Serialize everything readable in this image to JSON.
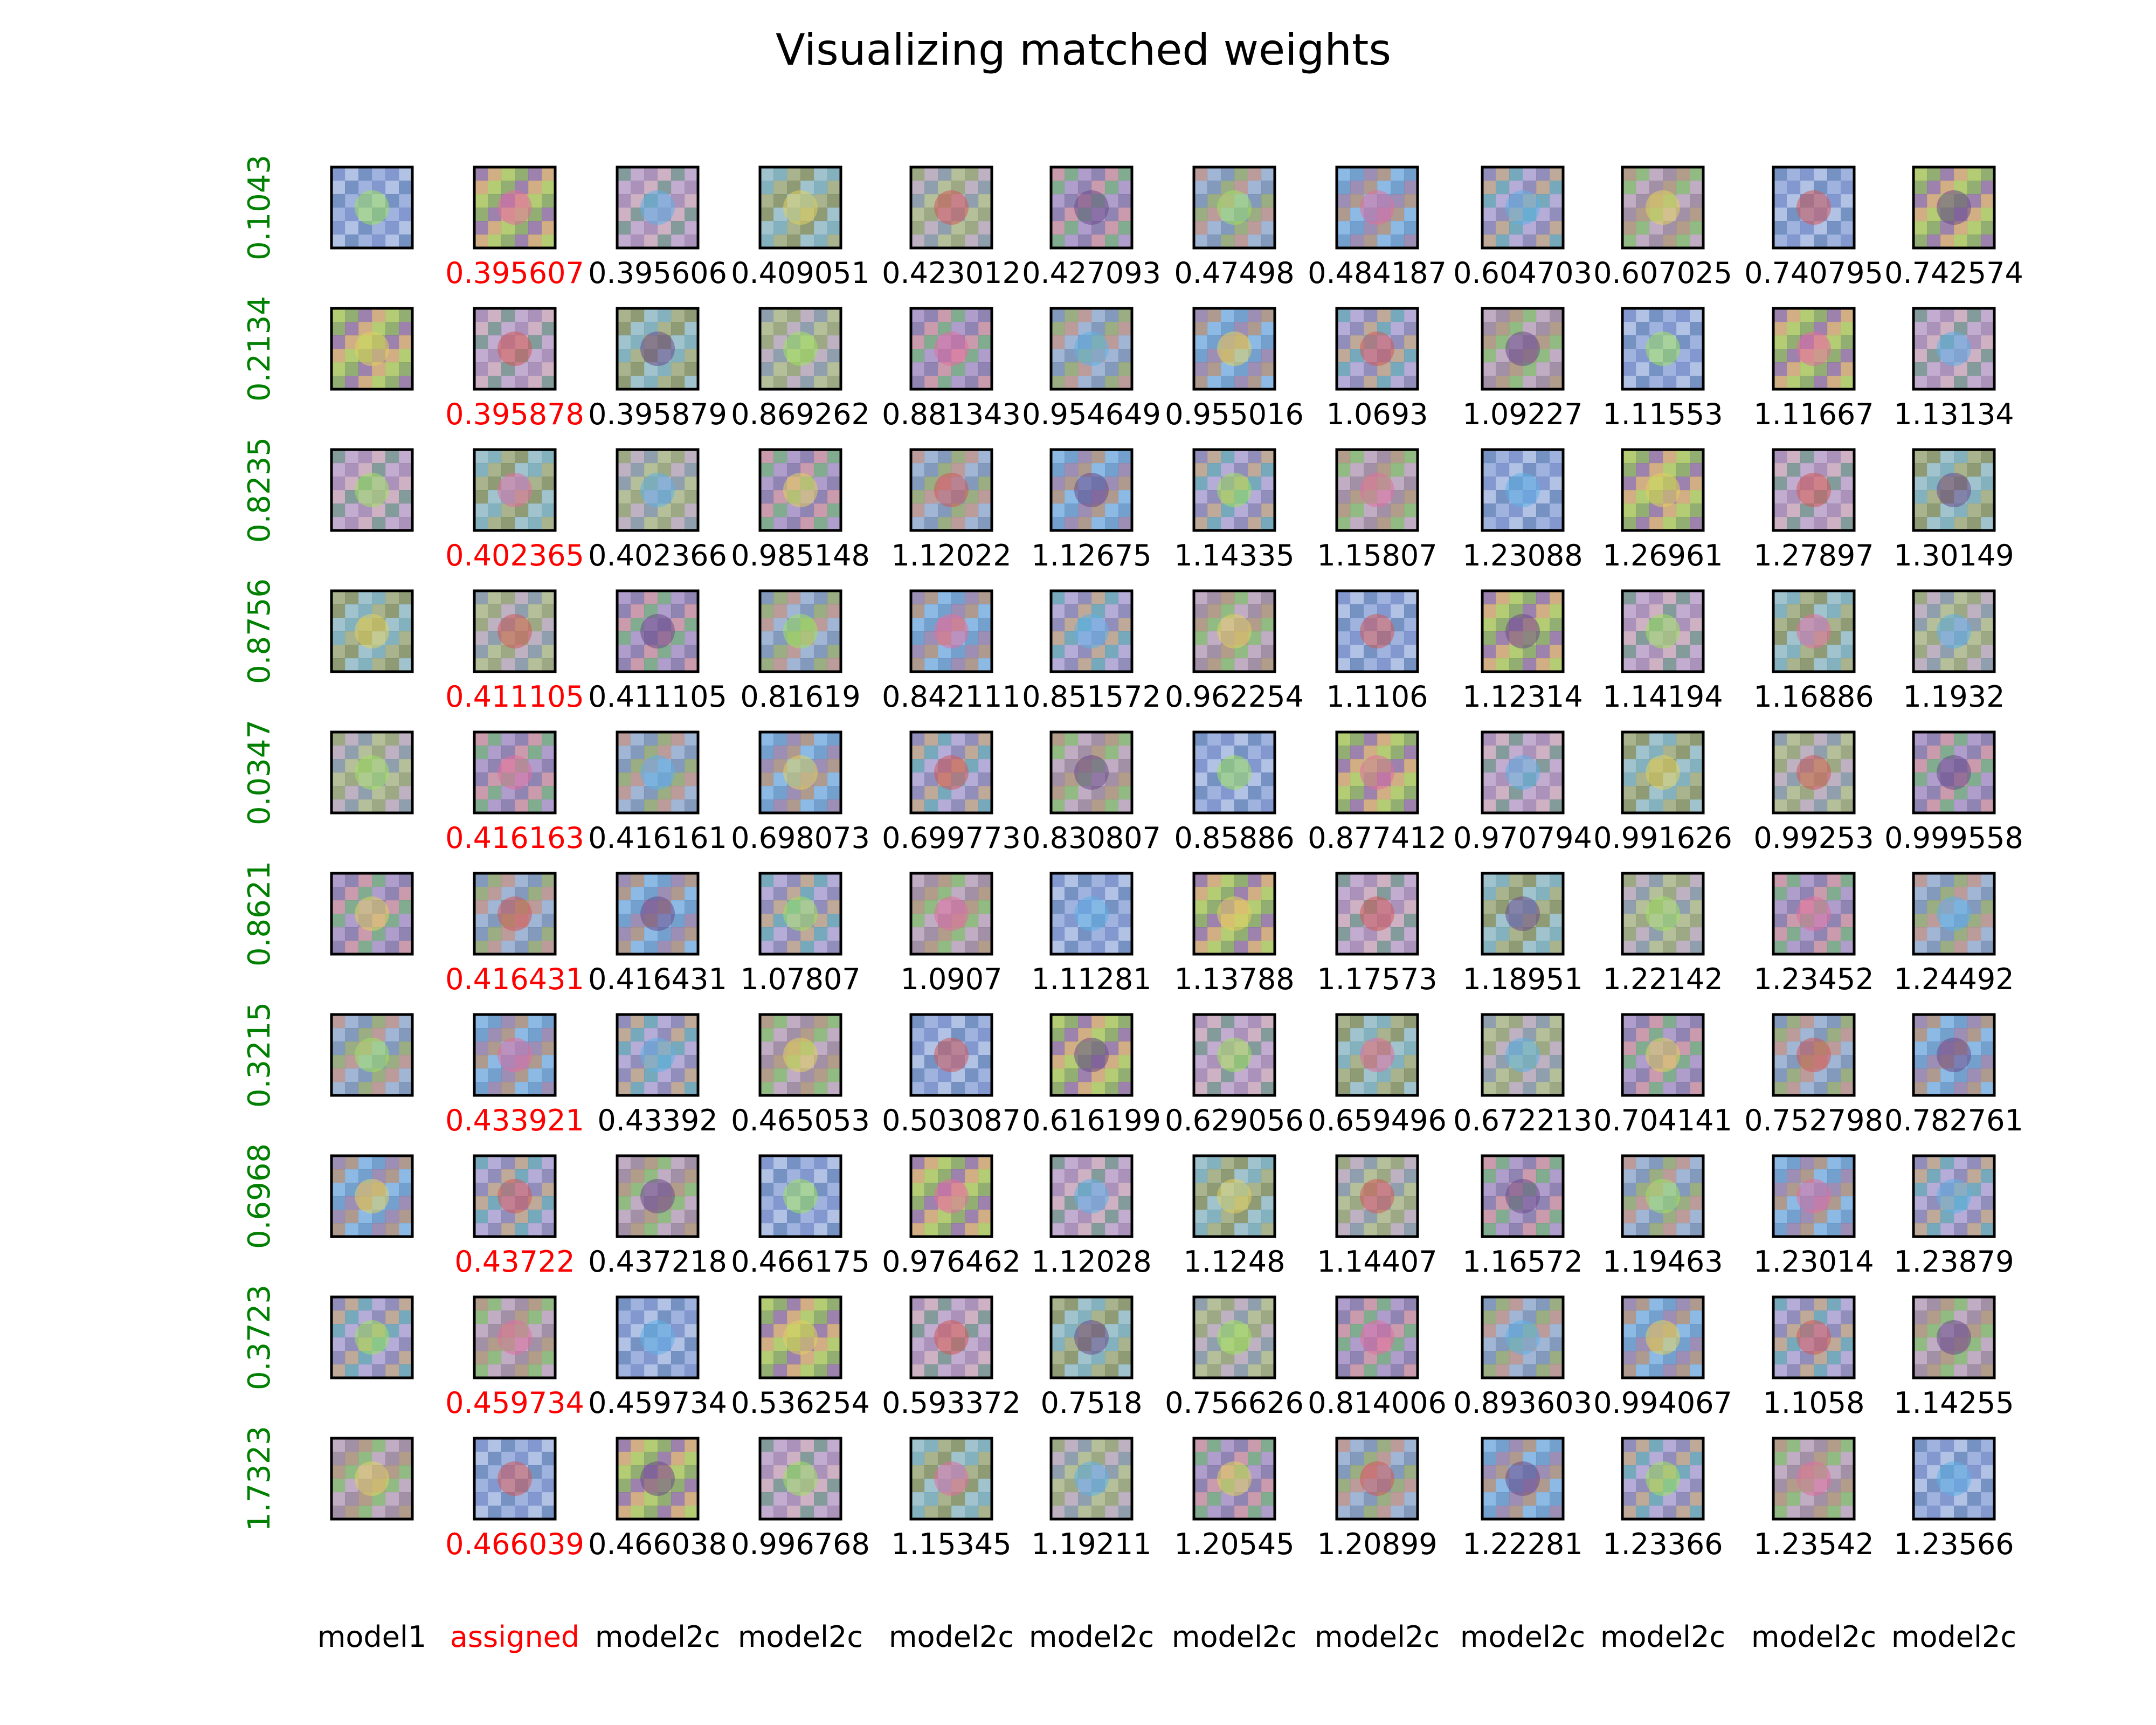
{
  "title": "Visualizing matched weights",
  "colors": {
    "row_label": "#008000",
    "assigned": "#ff0000",
    "text": "#000000",
    "tile_border": "#000000"
  },
  "chart_data": {
    "type": "image_grid",
    "title": "Visualizing matched weights",
    "column_labels": [
      "model1",
      "assigned",
      "model2c",
      "model2c",
      "model2c",
      "model2c",
      "model2c",
      "model2c",
      "model2c",
      "model2c",
      "model2c",
      "model2c"
    ],
    "row_labels": [
      "0.1043",
      "0.2134",
      "0.8235",
      "0.8756",
      "0.0347",
      "0.8621",
      "0.3215",
      "0.6968",
      "0.3723",
      "1.7323"
    ],
    "cell_values": [
      [
        "0.395607",
        "0.395606",
        "0.409051",
        "0.423012",
        "0.427093",
        "0.47498",
        "0.484187",
        "0.604703",
        "0.607025",
        "0.740795",
        "0.742574"
      ],
      [
        "0.395878",
        "0.395879",
        "0.869262",
        "0.881343",
        "0.954649",
        "0.955016",
        "1.0693",
        "1.09227",
        "1.11553",
        "1.11667",
        "1.13134"
      ],
      [
        "0.402365",
        "0.402366",
        "0.985148",
        "1.12022",
        "1.12675",
        "1.14335",
        "1.15807",
        "1.23088",
        "1.26961",
        "1.27897",
        "1.30149"
      ],
      [
        "0.411105",
        "0.411105",
        "0.81619",
        "0.842111",
        "0.851572",
        "0.962254",
        "1.1106",
        "1.12314",
        "1.14194",
        "1.16886",
        "1.1932"
      ],
      [
        "0.416163",
        "0.416161",
        "0.698073",
        "0.699773",
        "0.830807",
        "0.85886",
        "0.877412",
        "0.970794",
        "0.991626",
        "0.99253",
        "0.999558"
      ],
      [
        "0.416431",
        "0.416431",
        "1.07807",
        "1.0907",
        "1.11281",
        "1.13788",
        "1.17573",
        "1.18951",
        "1.22142",
        "1.23452",
        "1.24492"
      ],
      [
        "0.433921",
        "0.43392",
        "0.465053",
        "0.503087",
        "0.616199",
        "0.629056",
        "0.659496",
        "0.672213",
        "0.704141",
        "0.752798",
        "0.782761"
      ],
      [
        "0.43722",
        "0.437218",
        "0.466175",
        "0.976462",
        "1.12028",
        "1.1248",
        "1.14407",
        "1.16572",
        "1.19463",
        "1.23014",
        "1.23879"
      ],
      [
        "0.459734",
        "0.459734",
        "0.536254",
        "0.593372",
        "0.7518",
        "0.756626",
        "0.814006",
        "0.893603",
        "0.994067",
        "1.1058",
        "1.14255"
      ],
      [
        "0.466039",
        "0.466038",
        "0.996768",
        "1.15345",
        "1.19211",
        "1.20545",
        "1.20899",
        "1.22281",
        "1.23366",
        "1.23542",
        "1.23566"
      ]
    ]
  }
}
